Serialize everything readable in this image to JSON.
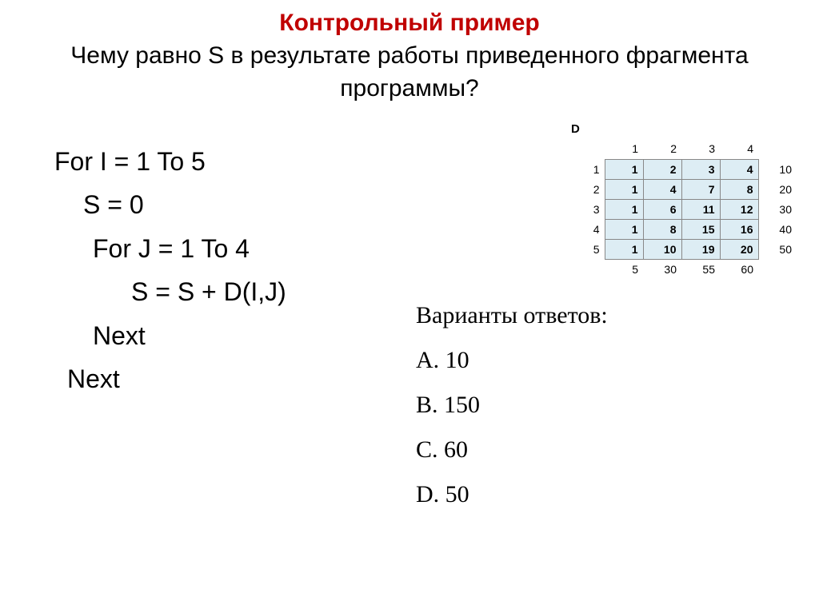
{
  "title": "Контрольный пример",
  "subtitle": "Чему равно S в результате работы приведенного фрагмента программы?",
  "code": {
    "line1": "For I = 1 To 5",
    "line2": "S = 0",
    "line3": "For J = 1 To 4",
    "line4": "S = S + D(I,J)",
    "line5": "Next",
    "line6": "Next"
  },
  "table": {
    "label": "D",
    "col_headers": [
      "1",
      "2",
      "3",
      "4"
    ],
    "row_headers": [
      "1",
      "2",
      "3",
      "4",
      "5"
    ],
    "data": [
      [
        "1",
        "2",
        "3",
        "4"
      ],
      [
        "1",
        "4",
        "7",
        "8"
      ],
      [
        "1",
        "6",
        "11",
        "12"
      ],
      [
        "1",
        "8",
        "15",
        "16"
      ],
      [
        "1",
        "10",
        "19",
        "20"
      ]
    ],
    "row_sums": [
      "10",
      "20",
      "30",
      "40",
      "50"
    ],
    "col_sums": [
      "5",
      "30",
      "55",
      "60"
    ],
    "header_bg": "#ffffff",
    "data_bg": "#ddedf4",
    "border_color": "#888888"
  },
  "answers": {
    "title": "Варианты ответов:",
    "options": {
      "a": "А. 10",
      "b": "В. 150",
      "c": "С. 60",
      "d": "D. 50"
    }
  },
  "colors": {
    "title_color": "#c00000",
    "text_color": "#000000",
    "background": "#ffffff"
  }
}
